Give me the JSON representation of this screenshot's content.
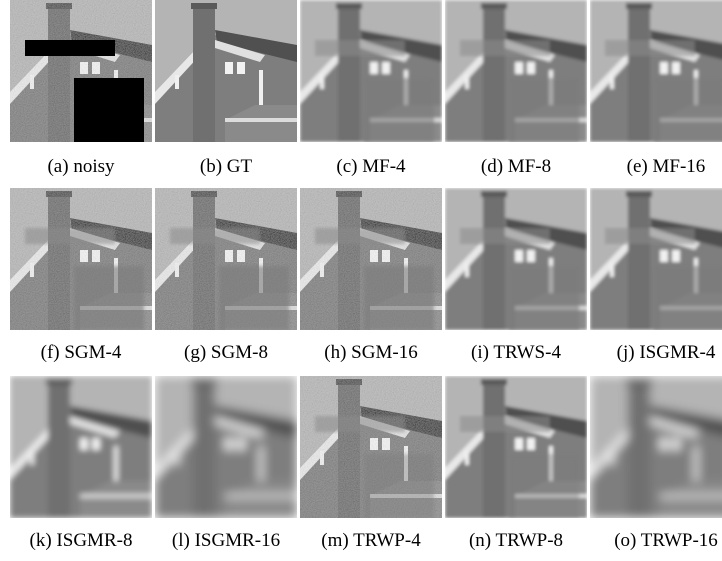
{
  "figure": {
    "captions": [
      "(a) noisy",
      "(b) GT",
      "(c) MF-4",
      "(d) MF-8",
      "(e) MF-16",
      "(f) SGM-4",
      "(g) SGM-8",
      "(h) SGM-16",
      "(i) TRWS-4",
      "(j) ISGMR-4",
      "(k) ISGMR-8",
      "(l) ISGMR-16",
      "(m) TRWP-4",
      "(n) TRWP-8",
      "(o) TRWP-16"
    ]
  }
}
